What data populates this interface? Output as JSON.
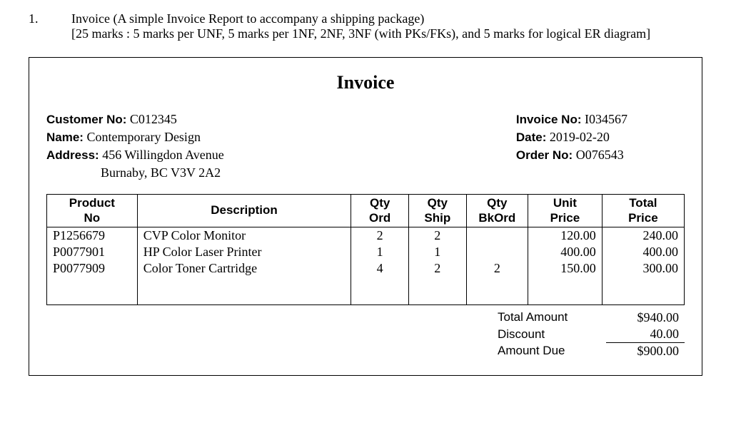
{
  "question": {
    "number": "1.",
    "line1": "Invoice (A simple Invoice Report to accompany a shipping package)",
    "line2": "[25 marks : 5 marks per UNF, 5 marks per 1NF, 2NF, 3NF (with PKs/FKs), and 5 marks for logical ER diagram]"
  },
  "invoice": {
    "title": "Invoice",
    "customer_no_label": "Customer No:",
    "customer_no": "C012345",
    "name_label": "Name:",
    "name": "Contemporary Design",
    "address_label": "Address:",
    "address_line1": "456 Willingdon Avenue",
    "address_line2": "Burnaby, BC  V3V 2A2",
    "invoice_no_label": "Invoice No:",
    "invoice_no": "I034567",
    "date_label": "Date:",
    "date": "2019-02-20",
    "order_no_label": "Order No:",
    "order_no": "O076543"
  },
  "columns": {
    "product_no": "Product No",
    "description": "Description",
    "qty_ord": "Qty Ord",
    "qty_ship": "Qty Ship",
    "qty_bkord": "Qty BkOrd",
    "unit_price": "Unit Price",
    "total_price": "Total Price"
  },
  "rows": [
    {
      "product_no": "P1256679",
      "description": "CVP Color Monitor",
      "qty_ord": "2",
      "qty_ship": "2",
      "qty_bkord": "",
      "unit_price": "120.00",
      "total_price": "240.00"
    },
    {
      "product_no": "P0077901",
      "description": "HP Color Laser Printer",
      "qty_ord": "1",
      "qty_ship": "1",
      "qty_bkord": "",
      "unit_price": "400.00",
      "total_price": "400.00"
    },
    {
      "product_no": "P0077909",
      "description": "Color Toner Cartridge",
      "qty_ord": "4",
      "qty_ship": "2",
      "qty_bkord": "2",
      "unit_price": "150.00",
      "total_price": "300.00"
    }
  ],
  "totals": {
    "total_amount_label": "Total Amount",
    "total_amount": "$940.00",
    "discount_label": "Discount",
    "discount": "40.00",
    "amount_due_label": "Amount Due",
    "amount_due": "$900.00"
  }
}
